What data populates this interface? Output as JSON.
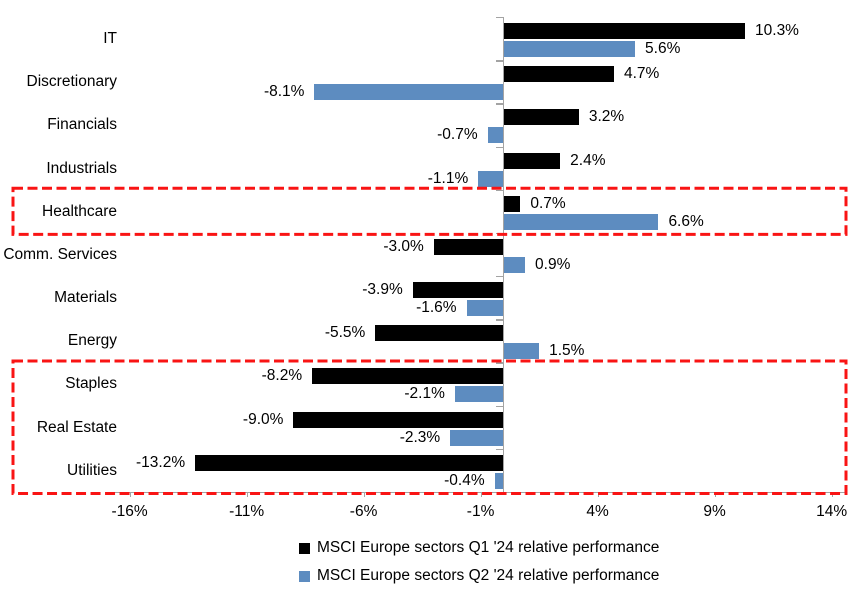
{
  "chart_data": {
    "type": "bar",
    "orientation": "horizontal",
    "title": "",
    "xlabel": "",
    "ylabel": "",
    "grid": false,
    "legend_position": "bottom",
    "xlim": [
      -16.7,
      14.7
    ],
    "categories": [
      "IT",
      "Discretionary",
      "Financials",
      "Industrials",
      "Healthcare",
      "Comm. Services",
      "Materials",
      "Energy",
      "Staples",
      "Real Estate",
      "Utilities"
    ],
    "series": [
      {
        "name": "MSCI Europe sectors Q1 '24 relative performance",
        "color": "#000000",
        "values": [
          10.3,
          4.7,
          3.2,
          2.4,
          0.7,
          -3.0,
          -3.9,
          -5.5,
          -8.2,
          -9.0,
          -13.2
        ],
        "labels": [
          "10.3%",
          "4.7%",
          "3.2%",
          "2.4%",
          "0.7%",
          "-3.0%",
          "-3.9%",
          "-5.5%",
          "-8.2%",
          "-9.0%",
          "-13.2%"
        ]
      },
      {
        "name": "MSCI Europe sectors Q2 '24 relative performance",
        "color": "#5D8CC0",
        "values": [
          5.6,
          -8.1,
          -0.7,
          -1.1,
          6.6,
          0.9,
          -1.6,
          1.5,
          -2.1,
          -2.3,
          -0.4
        ],
        "labels": [
          "5.6%",
          "-8.1%",
          "-0.7%",
          "-1.1%",
          "6.6%",
          "0.9%",
          "-1.6%",
          "1.5%",
          "-2.1%",
          "-2.3%",
          "-0.4%"
        ]
      }
    ],
    "x_ticks": [
      {
        "value": -16,
        "label": "-16%"
      },
      {
        "value": -11,
        "label": "-11%"
      },
      {
        "value": -6,
        "label": "-6%"
      },
      {
        "value": -1,
        "label": "-1%"
      },
      {
        "value": 4,
        "label": "4%"
      },
      {
        "value": 9,
        "label": "9%"
      },
      {
        "value": 14,
        "label": "14%"
      }
    ],
    "axis_color": "#A3A3A3",
    "highlights": [
      {
        "name": "healthcare-box",
        "from_category": "Healthcare",
        "to_category": "Healthcare",
        "style": "dashed",
        "color": "#F91414"
      },
      {
        "name": "defensive-sectors-box",
        "from_category": "Staples",
        "to_category": "Utilities",
        "style": "dashed",
        "color": "#F91414"
      }
    ]
  }
}
